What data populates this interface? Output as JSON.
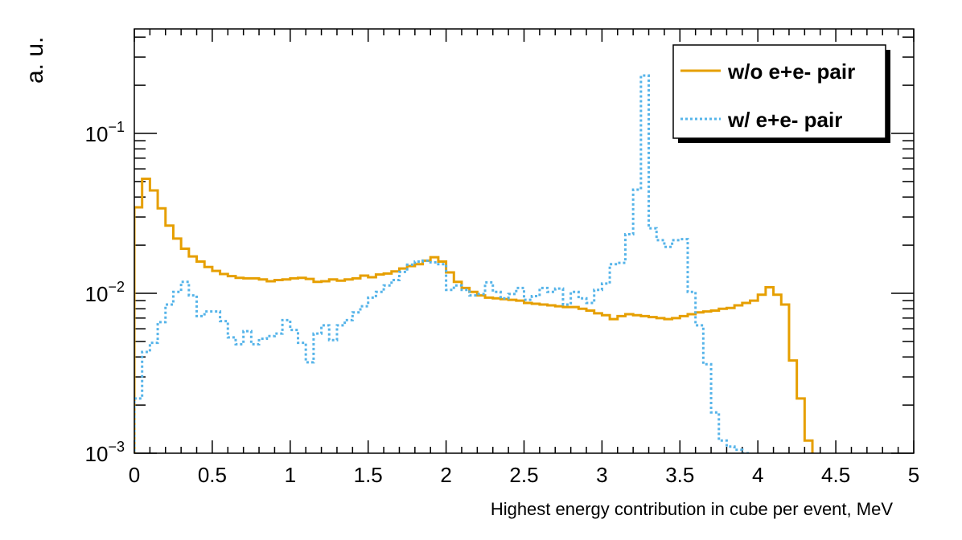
{
  "chart_data": {
    "type": "line",
    "xlabel": "Highest energy contribution in cube per event, MeV",
    "ylabel": "a. u.",
    "xlim": [
      0,
      5
    ],
    "ylim": [
      0.001,
      0.45
    ],
    "yscale": "log",
    "x_ticks": [
      "0",
      "0.5",
      "1",
      "1.5",
      "2",
      "2.5",
      "3",
      "3.5",
      "4",
      "4.5",
      "5"
    ],
    "y_ticks": [
      {
        "base": "10",
        "exp": "−3"
      },
      {
        "base": "10",
        "exp": "−2"
      },
      {
        "base": "10",
        "exp": "−1"
      }
    ],
    "legend_position": "top-right",
    "series": [
      {
        "name": "w/o e+e- pair",
        "color": "#e69f00",
        "style": "solid",
        "bin_width": 0.05,
        "values": [
          0.0345,
          0.052,
          0.044,
          0.034,
          0.0265,
          0.022,
          0.019,
          0.017,
          0.0158,
          0.0146,
          0.0138,
          0.0132,
          0.0128,
          0.0125,
          0.0124,
          0.0124,
          0.0122,
          0.0119,
          0.0121,
          0.0122,
          0.0124,
          0.0125,
          0.0123,
          0.0118,
          0.0119,
          0.0122,
          0.012,
          0.0122,
          0.0124,
          0.0129,
          0.0126,
          0.0131,
          0.0133,
          0.0137,
          0.0143,
          0.0148,
          0.0152,
          0.016,
          0.0168,
          0.0158,
          0.0135,
          0.0118,
          0.0108,
          0.0102,
          0.0097,
          0.0094,
          0.0093,
          0.0092,
          0.0091,
          0.009,
          0.0087,
          0.0086,
          0.0085,
          0.0084,
          0.0083,
          0.0082,
          0.0082,
          0.008,
          0.0078,
          0.0075,
          0.0073,
          0.0069,
          0.0072,
          0.0074,
          0.0073,
          0.0072,
          0.0071,
          0.007,
          0.0069,
          0.007,
          0.0072,
          0.0074,
          0.0076,
          0.0077,
          0.0078,
          0.008,
          0.0081,
          0.0084,
          0.0087,
          0.009,
          0.0098,
          0.0109,
          0.0098,
          0.0085,
          0.0038,
          0.0022,
          0.0012,
          0.0009,
          0.0008,
          0.0008,
          0.0008,
          0.0008,
          0.0008,
          0.0008,
          0.0008,
          0.0008,
          0.0008,
          0.0008,
          0.0008,
          0.0008
        ]
      },
      {
        "name": "w/ e+e- pair",
        "color": "#56b4e9",
        "style": "dotted",
        "bin_width": 0.05,
        "values": [
          0.0022,
          0.0043,
          0.0049,
          0.0066,
          0.0085,
          0.0102,
          0.0118,
          0.0097,
          0.0072,
          0.0077,
          0.0077,
          0.0067,
          0.0053,
          0.0048,
          0.0058,
          0.0048,
          0.0052,
          0.0054,
          0.0056,
          0.0068,
          0.0059,
          0.0049,
          0.0037,
          0.0056,
          0.0063,
          0.0051,
          0.0063,
          0.0068,
          0.0076,
          0.0083,
          0.0094,
          0.0102,
          0.0112,
          0.0121,
          0.0136,
          0.0151,
          0.0158,
          0.016,
          0.0156,
          0.0152,
          0.0105,
          0.0112,
          0.0105,
          0.0097,
          0.0099,
          0.0117,
          0.0102,
          0.0093,
          0.0099,
          0.0108,
          0.0091,
          0.0096,
          0.0108,
          0.0102,
          0.0107,
          0.0085,
          0.0102,
          0.0093,
          0.0087,
          0.0105,
          0.0115,
          0.0152,
          0.0155,
          0.0234,
          0.0445,
          0.23,
          0.0255,
          0.0215,
          0.0195,
          0.0215,
          0.0218,
          0.0102,
          0.0063,
          0.0036,
          0.0018,
          0.0012,
          0.0011,
          0.00105,
          0.001,
          0.00095,
          0.0009,
          0.0009,
          0.0009,
          0.0009,
          0.0009,
          0.0009,
          0.0009,
          0.0009,
          0.0009,
          0.0009,
          0.0009,
          0.0009,
          0.0009,
          0.0009,
          0.0009,
          0.0009,
          0.0009,
          0.0009,
          0.0009,
          0.0009
        ]
      }
    ]
  }
}
